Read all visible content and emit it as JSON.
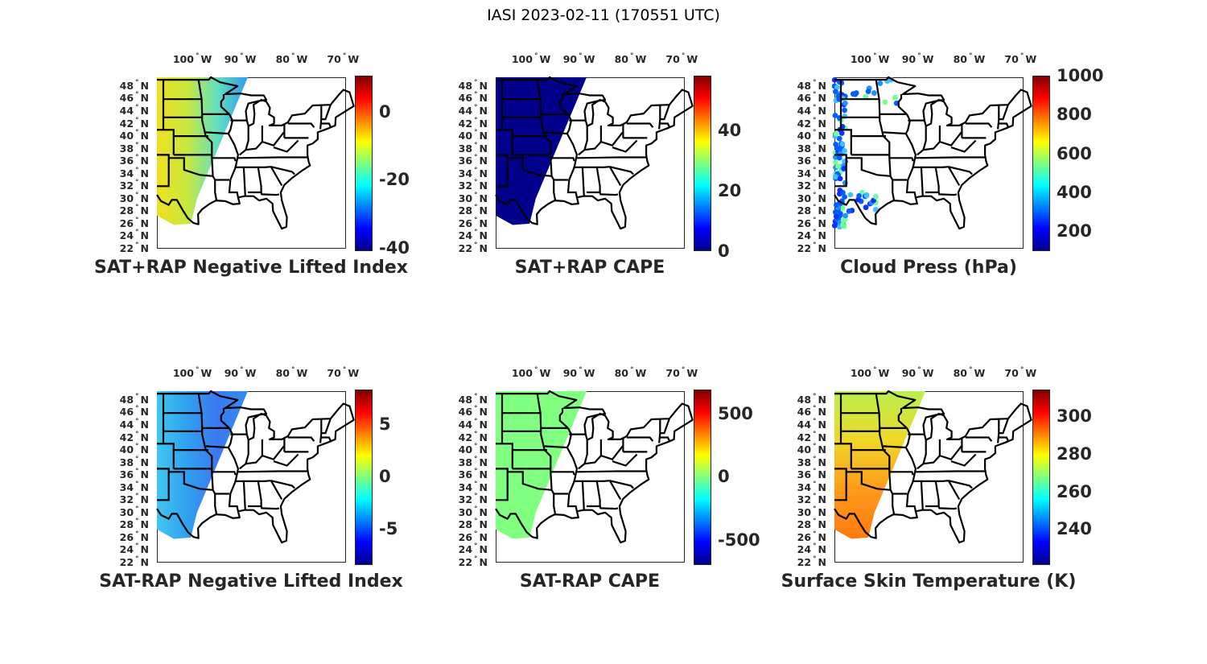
{
  "figure_title": "IASI 2023-02-11 (170551 UTC)",
  "lat_ticks": [
    "48",
    "46",
    "44",
    "42",
    "40",
    "38",
    "36",
    "34",
    "32",
    "30",
    "28",
    "26",
    "24",
    "22"
  ],
  "lat_suffix": "N",
  "lon_ticks": [
    "100",
    "90",
    "80",
    "70"
  ],
  "lon_suffix": "W",
  "colormap": "jet",
  "panels": [
    {
      "title": "SAT+RAP Negative Lifted Index",
      "range": [
        -41,
        10.6
      ],
      "ticks": [
        "0",
        "-20",
        "-40"
      ],
      "tick_values": [
        0,
        -20,
        -40
      ],
      "swath": "fill",
      "swath_colors": [
        "#f0e020",
        "#c8e840",
        "#60e0c0",
        "#2f9af0"
      ]
    },
    {
      "title": "SAT+RAP CAPE",
      "range": [
        0,
        58
      ],
      "ticks": [
        "0",
        "20",
        "40"
      ],
      "tick_values": [
        0,
        20,
        40
      ],
      "swath": "fill",
      "swath_colors": [
        "#00008b",
        "#00008b"
      ]
    },
    {
      "title": "Cloud Press (hPa)",
      "range": [
        97,
        1000
      ],
      "ticks": [
        "1000",
        "800",
        "600",
        "400",
        "200"
      ],
      "tick_values": [
        1000,
        800,
        600,
        400,
        200
      ],
      "swath": "dots",
      "swath_colors": [
        "#1030ff",
        "#0060ff",
        "#2090ff",
        "#40c0ff",
        "#70ff90"
      ]
    },
    {
      "title": "SAT-RAP Negative Lifted Index",
      "range": [
        -8.5,
        8.3
      ],
      "ticks": [
        "5",
        "0",
        "-5"
      ],
      "tick_values": [
        5,
        0,
        -5
      ],
      "swath": "fill",
      "swath_colors": [
        "#40c8f0",
        "#30a0f0",
        "#3c78f0",
        "#3090f0"
      ]
    },
    {
      "title": "SAT-RAP CAPE",
      "range": [
        -700,
        690
      ],
      "ticks": [
        "500",
        "0",
        "-500"
      ],
      "tick_values": [
        500,
        0,
        -500
      ],
      "swath": "fill",
      "swath_colors": [
        "#80ff80",
        "#80ff80"
      ]
    },
    {
      "title": "Surface Skin Temperature (K)",
      "range": [
        221,
        314
      ],
      "ticks": [
        "300",
        "280",
        "260",
        "240"
      ],
      "tick_values": [
        300,
        280,
        260,
        240
      ],
      "swath": "fill-vertical",
      "swath_colors": [
        "#b8f050",
        "#f0d828",
        "#ff9a1a",
        "#ff7a10"
      ]
    }
  ]
}
